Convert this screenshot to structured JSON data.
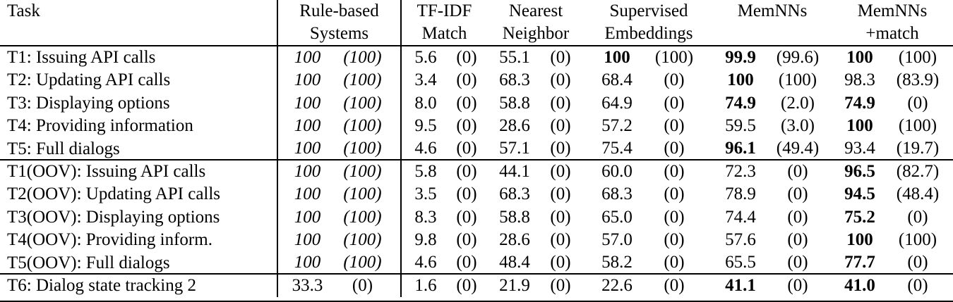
{
  "table": {
    "header": {
      "task": "Task",
      "columns": [
        {
          "line1": "Rule-based",
          "line2": "Systems"
        },
        {
          "line1": "TF-IDF",
          "line2": "Match"
        },
        {
          "line1": "Nearest",
          "line2": "Neighbor"
        },
        {
          "line1": "Supervised",
          "line2": "Embeddings"
        },
        {
          "line1": "MemNNs",
          "line2": ""
        },
        {
          "line1": "MemNNs",
          "line2": "+match"
        }
      ]
    },
    "rows": [
      {
        "task": "T1: Issuing API calls",
        "group_end": false,
        "cells": [
          {
            "v": "100",
            "p": "(100)",
            "bold": false,
            "italic": true
          },
          {
            "v": "5.6",
            "p": "(0)",
            "bold": false,
            "italic": false
          },
          {
            "v": "55.1",
            "p": "(0)",
            "bold": false,
            "italic": false
          },
          {
            "v": "100",
            "p": "(100)",
            "bold": true,
            "italic": false
          },
          {
            "v": "99.9",
            "p": "(99.6)",
            "bold": true,
            "italic": false
          },
          {
            "v": "100",
            "p": "(100)",
            "bold": true,
            "italic": false
          }
        ]
      },
      {
        "task": "T2: Updating API calls",
        "group_end": false,
        "cells": [
          {
            "v": "100",
            "p": "(100)",
            "bold": false,
            "italic": true
          },
          {
            "v": "3.4",
            "p": "(0)",
            "bold": false,
            "italic": false
          },
          {
            "v": "68.3",
            "p": "(0)",
            "bold": false,
            "italic": false
          },
          {
            "v": "68.4",
            "p": "(0)",
            "bold": false,
            "italic": false
          },
          {
            "v": "100",
            "p": "(100)",
            "bold": true,
            "italic": false
          },
          {
            "v": "98.3",
            "p": "(83.9)",
            "bold": false,
            "italic": false
          }
        ]
      },
      {
        "task": "T3: Displaying options",
        "group_end": false,
        "cells": [
          {
            "v": "100",
            "p": "(100)",
            "bold": false,
            "italic": true
          },
          {
            "v": "8.0",
            "p": "(0)",
            "bold": false,
            "italic": false
          },
          {
            "v": "58.8",
            "p": "(0)",
            "bold": false,
            "italic": false
          },
          {
            "v": "64.9",
            "p": "(0)",
            "bold": false,
            "italic": false
          },
          {
            "v": "74.9",
            "p": "(2.0)",
            "bold": true,
            "italic": false
          },
          {
            "v": "74.9",
            "p": "(0)",
            "bold": true,
            "italic": false
          }
        ]
      },
      {
        "task": "T4: Providing information",
        "group_end": false,
        "cells": [
          {
            "v": "100",
            "p": "(100)",
            "bold": false,
            "italic": true
          },
          {
            "v": "9.5",
            "p": "(0)",
            "bold": false,
            "italic": false
          },
          {
            "v": "28.6",
            "p": "(0)",
            "bold": false,
            "italic": false
          },
          {
            "v": "57.2",
            "p": "(0)",
            "bold": false,
            "italic": false
          },
          {
            "v": "59.5",
            "p": "(3.0)",
            "bold": false,
            "italic": false
          },
          {
            "v": "100",
            "p": "(100)",
            "bold": true,
            "italic": false
          }
        ]
      },
      {
        "task": "T5: Full dialogs",
        "group_end": true,
        "cells": [
          {
            "v": "100",
            "p": "(100)",
            "bold": false,
            "italic": true
          },
          {
            "v": "4.6",
            "p": "(0)",
            "bold": false,
            "italic": false
          },
          {
            "v": "57.1",
            "p": "(0)",
            "bold": false,
            "italic": false
          },
          {
            "v": "75.4",
            "p": "(0)",
            "bold": false,
            "italic": false
          },
          {
            "v": "96.1",
            "p": "(49.4)",
            "bold": true,
            "italic": false
          },
          {
            "v": "93.4",
            "p": "(19.7)",
            "bold": false,
            "italic": false
          }
        ]
      },
      {
        "task": "T1(OOV): Issuing API calls",
        "group_end": false,
        "cells": [
          {
            "v": "100",
            "p": "(100)",
            "bold": false,
            "italic": true
          },
          {
            "v": "5.8",
            "p": "(0)",
            "bold": false,
            "italic": false
          },
          {
            "v": "44.1",
            "p": "(0)",
            "bold": false,
            "italic": false
          },
          {
            "v": "60.0",
            "p": "(0)",
            "bold": false,
            "italic": false
          },
          {
            "v": "72.3",
            "p": "(0)",
            "bold": false,
            "italic": false
          },
          {
            "v": "96.5",
            "p": "(82.7)",
            "bold": true,
            "italic": false
          }
        ]
      },
      {
        "task": "T2(OOV): Updating API calls",
        "group_end": false,
        "cells": [
          {
            "v": "100",
            "p": "(100)",
            "bold": false,
            "italic": true
          },
          {
            "v": "3.5",
            "p": "(0)",
            "bold": false,
            "italic": false
          },
          {
            "v": "68.3",
            "p": "(0)",
            "bold": false,
            "italic": false
          },
          {
            "v": "68.3",
            "p": "(0)",
            "bold": false,
            "italic": false
          },
          {
            "v": "78.9",
            "p": "(0)",
            "bold": false,
            "italic": false
          },
          {
            "v": "94.5",
            "p": "(48.4)",
            "bold": true,
            "italic": false
          }
        ]
      },
      {
        "task": "T3(OOV): Displaying options",
        "group_end": false,
        "cells": [
          {
            "v": "100",
            "p": "(100)",
            "bold": false,
            "italic": true
          },
          {
            "v": "8.3",
            "p": "(0)",
            "bold": false,
            "italic": false
          },
          {
            "v": "58.8",
            "p": "(0)",
            "bold": false,
            "italic": false
          },
          {
            "v": "65.0",
            "p": "(0)",
            "bold": false,
            "italic": false
          },
          {
            "v": "74.4",
            "p": "(0)",
            "bold": false,
            "italic": false
          },
          {
            "v": "75.2",
            "p": "(0)",
            "bold": true,
            "italic": false
          }
        ]
      },
      {
        "task": "T4(OOV): Providing inform.",
        "group_end": false,
        "cells": [
          {
            "v": "100",
            "p": "(100)",
            "bold": false,
            "italic": true
          },
          {
            "v": "9.8",
            "p": "(0)",
            "bold": false,
            "italic": false
          },
          {
            "v": "28.6",
            "p": "(0)",
            "bold": false,
            "italic": false
          },
          {
            "v": "57.0",
            "p": "(0)",
            "bold": false,
            "italic": false
          },
          {
            "v": "57.6",
            "p": "(0)",
            "bold": false,
            "italic": false
          },
          {
            "v": "100",
            "p": "(100)",
            "bold": true,
            "italic": false
          }
        ]
      },
      {
        "task": "T5(OOV): Full dialogs",
        "group_end": true,
        "cells": [
          {
            "v": "100",
            "p": "(100)",
            "bold": false,
            "italic": true
          },
          {
            "v": "4.6",
            "p": "(0)",
            "bold": false,
            "italic": false
          },
          {
            "v": "48.4",
            "p": "(0)",
            "bold": false,
            "italic": false
          },
          {
            "v": "58.2",
            "p": "(0)",
            "bold": false,
            "italic": false
          },
          {
            "v": "65.5",
            "p": "(0)",
            "bold": false,
            "italic": false
          },
          {
            "v": "77.7",
            "p": "(0)",
            "bold": true,
            "italic": false
          }
        ]
      },
      {
        "task": "T6: Dialog state tracking 2",
        "group_end": false,
        "cells": [
          {
            "v": "33.3",
            "p": "(0)",
            "bold": false,
            "italic": false
          },
          {
            "v": "1.6",
            "p": "(0)",
            "bold": false,
            "italic": false
          },
          {
            "v": "21.9",
            "p": "(0)",
            "bold": false,
            "italic": false
          },
          {
            "v": "22.6",
            "p": "(0)",
            "bold": false,
            "italic": false
          },
          {
            "v": "41.1",
            "p": "(0)",
            "bold": true,
            "italic": false
          },
          {
            "v": "41.0",
            "p": "(0)",
            "bold": true,
            "italic": false
          }
        ]
      }
    ]
  },
  "colors": {
    "text": "#000000",
    "rule_lines": "#000000",
    "background": "#ffffff"
  }
}
